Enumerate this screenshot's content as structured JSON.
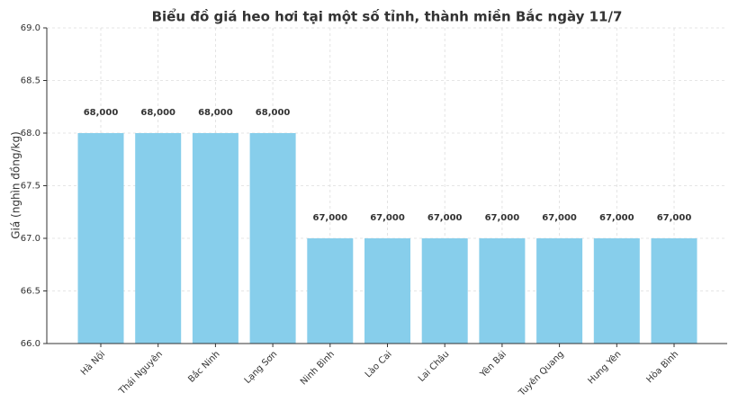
{
  "chart_data": {
    "type": "bar",
    "title": "Biểu đồ giá heo hơi tại một số tỉnh, thành miền Bắc ngày 11/7",
    "y_label": "Giá (nghìn đồng/kg)",
    "categories": [
      "Hà Nội",
      "Thái Nguyên",
      "Bắc Ninh",
      "Lạng Sơn",
      "Ninh Bình",
      "Lào Cai",
      "Lai Châu",
      "Yên Bái",
      "Tuyên Quang",
      "Hưng Yên",
      "Hòa Bình"
    ],
    "values": [
      68,
      68,
      68,
      68,
      67,
      67,
      67,
      67,
      67,
      67,
      67
    ],
    "value_labels": [
      "68,000",
      "68,000",
      "68,000",
      "68,000",
      "67,000",
      "67,000",
      "67,000",
      "67,000",
      "67,000",
      "67,000",
      "67,000"
    ],
    "color": "#87ceeb",
    "ylim": [
      66,
      69
    ],
    "yticks": [
      {
        "value": 66,
        "label": "66.0"
      },
      {
        "value": 66.5,
        "label": "66.5"
      },
      {
        "value": 67,
        "label": "67.0"
      },
      {
        "value": 67.5,
        "label": "67.5"
      },
      {
        "value": 68,
        "label": "68.0"
      },
      {
        "value": 68.5,
        "label": "68.5"
      },
      {
        "value": 69,
        "label": "69.0"
      }
    ],
    "grid": true
  }
}
